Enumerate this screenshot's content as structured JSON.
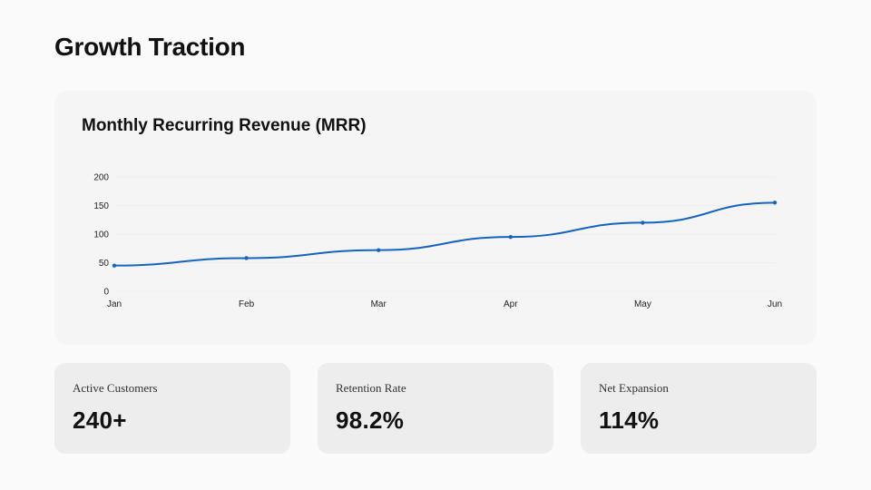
{
  "page": {
    "title": "Growth Traction"
  },
  "chart_data": {
    "type": "line",
    "title": "Monthly Recurring Revenue (MRR)",
    "xlabel": "",
    "ylabel": "",
    "categories": [
      "Jan",
      "Feb",
      "Mar",
      "Apr",
      "May",
      "Jun"
    ],
    "series": [
      {
        "name": "MRR",
        "values": [
          45,
          58,
          72,
          95,
          120,
          155
        ]
      }
    ],
    "ylim": [
      0,
      200
    ],
    "yticks": [
      0,
      50,
      100,
      150,
      200
    ],
    "grid": true,
    "legend": "none",
    "colors": {
      "line": "#1565c0",
      "grid": "#eeeeee"
    }
  },
  "metrics": [
    {
      "label": "Active Customers",
      "value": "240+"
    },
    {
      "label": "Retention Rate",
      "value": "98.2%"
    },
    {
      "label": "Net Expansion",
      "value": "114%"
    }
  ]
}
